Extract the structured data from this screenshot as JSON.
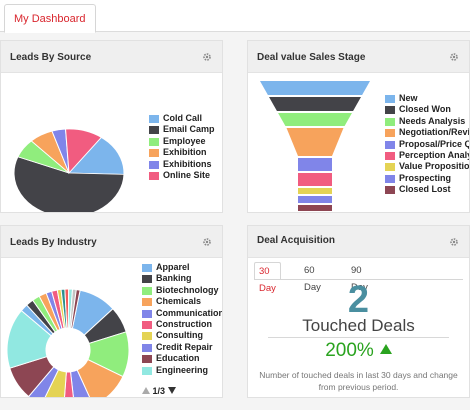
{
  "dashboard_tab": "My Dashboard",
  "colors": {
    "accent_red": "#d9262e",
    "success_green": "#2aa31f",
    "number_teal": "#4a8fa0"
  },
  "icons": [
    "gear-icon",
    "triangle-up-icon",
    "triangle-down-icon"
  ],
  "leads_by_source": {
    "title": "Leads By Source",
    "legend": [
      {
        "label": "Cold Call",
        "color": "#7cb5ec"
      },
      {
        "label": "Email Camp",
        "color": "#434348"
      },
      {
        "label": "Employee",
        "color": "#90ed7d"
      },
      {
        "label": "Exhibition",
        "color": "#f7a35c"
      },
      {
        "label": "Exhibitions",
        "color": "#8085e9"
      },
      {
        "label": "Online Site",
        "color": "#f15c80"
      }
    ]
  },
  "deal_value": {
    "title": "Deal value Sales Stage",
    "legend": [
      {
        "label": "New",
        "color": "#7cb5ec"
      },
      {
        "label": "Closed Won",
        "color": "#434348"
      },
      {
        "label": "Needs Analysis",
        "color": "#90ed7d"
      },
      {
        "label": "Negotiation/Review",
        "color": "#f7a35c"
      },
      {
        "label": "Proposal/Price Quote",
        "color": "#8085e9"
      },
      {
        "label": "Perception Analysis",
        "color": "#f15c80"
      },
      {
        "label": "Value Proposition",
        "color": "#e4d354"
      },
      {
        "label": "Prospecting",
        "color": "#8085e8"
      },
      {
        "label": "Closed Lost",
        "color": "#8d4653"
      }
    ]
  },
  "leads_by_industry": {
    "title": "Leads By Industry",
    "legend": [
      {
        "label": "Apparel",
        "color": "#7cb5ec"
      },
      {
        "label": "Banking",
        "color": "#434348"
      },
      {
        "label": "Biotechnology",
        "color": "#90ed7d"
      },
      {
        "label": "Chemicals",
        "color": "#f7a35c"
      },
      {
        "label": "Communications",
        "color": "#8085e9"
      },
      {
        "label": "Construction",
        "color": "#f15c80"
      },
      {
        "label": "Consulting",
        "color": "#e4d354"
      },
      {
        "label": "Credit Repair",
        "color": "#8085e8"
      },
      {
        "label": "Education",
        "color": "#8d4653"
      },
      {
        "label": "Engineering",
        "color": "#91e8e1"
      }
    ],
    "pager": "1/3"
  },
  "deal_acquisition": {
    "title": "Deal Acquisition",
    "tabs": [
      "30 Day",
      "60 Day",
      "90 Day"
    ],
    "active_tab": "30 Day",
    "count": "2",
    "count_label": "Touched Deals",
    "change": "200%",
    "note": "Number of touched deals in last 30 days and change from previous period."
  }
}
